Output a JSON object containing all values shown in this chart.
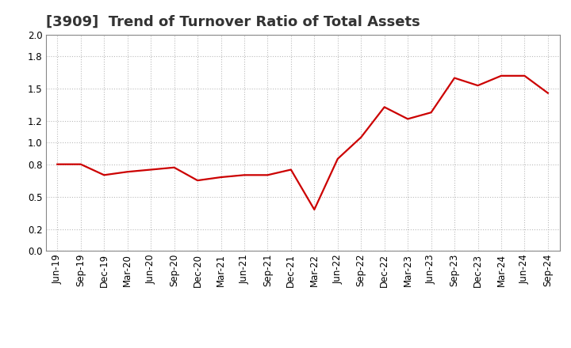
{
  "title": "[3909]  Trend of Turnover Ratio of Total Assets",
  "labels": [
    "Jun-19",
    "Sep-19",
    "Dec-19",
    "Mar-20",
    "Jun-20",
    "Sep-20",
    "Dec-20",
    "Mar-21",
    "Jun-21",
    "Sep-21",
    "Dec-21",
    "Mar-22",
    "Jun-22",
    "Sep-22",
    "Dec-22",
    "Mar-23",
    "Jun-23",
    "Sep-23",
    "Dec-23",
    "Mar-24",
    "Jun-24",
    "Sep-24"
  ],
  "values": [
    0.8,
    0.8,
    0.7,
    0.73,
    0.75,
    0.77,
    0.65,
    0.68,
    0.7,
    0.7,
    0.75,
    0.38,
    0.85,
    1.05,
    1.33,
    1.22,
    1.28,
    1.6,
    1.53,
    1.62,
    1.62,
    1.46
  ],
  "line_color": "#cc0000",
  "background_color": "#ffffff",
  "grid_color": "#bbbbbb",
  "ylim": [
    0.0,
    2.0
  ],
  "yticks": [
    0.0,
    0.2,
    0.5,
    0.8,
    1.0,
    1.2,
    1.5,
    1.8,
    2.0
  ],
  "title_fontsize": 13,
  "tick_fontsize": 8.5,
  "line_width": 1.6
}
